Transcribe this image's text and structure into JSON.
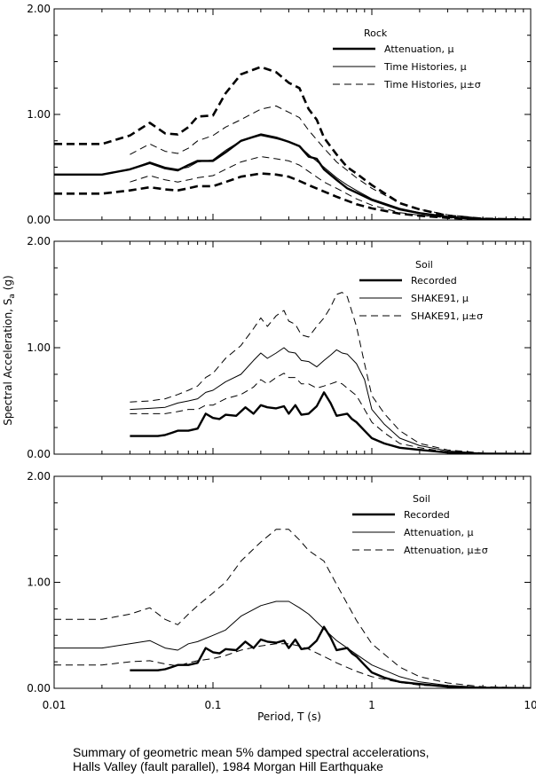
{
  "y_axis_label": "Spectral Acceleration, S",
  "y_axis_label_sub": "a",
  "y_axis_label_units": " (g)",
  "x_axis_label": "Period, T (s)",
  "caption": [
    "Summary of geometric mean 5% damped spectral accelerations,",
    "Halls Valley (fault parallel), 1984 Morgan Hill Earthquake"
  ],
  "chart_data": [
    {
      "type": "line",
      "xscale": "log",
      "xlim": [
        0.01,
        10
      ],
      "ylim": [
        0,
        2
      ],
      "yticks": [
        "0.00",
        "1.00",
        "2.00"
      ],
      "xticks": [],
      "grid": false,
      "legend_position": "top-right",
      "legend_title": "Rock",
      "series": [
        {
          "name": "Attenuation, μ",
          "style": "thick",
          "x": [
            0.01,
            0.02,
            0.03,
            0.04,
            0.05,
            0.06,
            0.07,
            0.08,
            0.1,
            0.12,
            0.15,
            0.2,
            0.25,
            0.3,
            0.35,
            0.4,
            0.45,
            0.5,
            0.6,
            0.7,
            0.8,
            1.0,
            1.5,
            2,
            3,
            4,
            5,
            7,
            10
          ],
          "y": [
            0.43,
            0.43,
            0.48,
            0.54,
            0.49,
            0.47,
            0.52,
            0.56,
            0.56,
            0.64,
            0.75,
            0.81,
            0.78,
            0.74,
            0.7,
            0.6,
            0.58,
            0.48,
            0.38,
            0.3,
            0.26,
            0.19,
            0.1,
            0.065,
            0.03,
            0.015,
            0.01,
            0.005,
            0.003
          ]
        },
        {
          "name": "Time Histories, μ",
          "style": "thin",
          "x": [
            0.03,
            0.04,
            0.05,
            0.06,
            0.07,
            0.08,
            0.1,
            0.12,
            0.15,
            0.2,
            0.25,
            0.3,
            0.35,
            0.4,
            0.5,
            0.6,
            0.7,
            0.8,
            1.0,
            1.5,
            2,
            3,
            4,
            5,
            7,
            10
          ],
          "y": [
            0.48,
            0.55,
            0.5,
            0.48,
            0.5,
            0.55,
            0.57,
            0.66,
            0.75,
            0.8,
            0.77,
            0.74,
            0.7,
            0.62,
            0.5,
            0.4,
            0.33,
            0.28,
            0.2,
            0.11,
            0.07,
            0.03,
            0.015,
            0.01,
            0.005,
            0.003
          ]
        },
        {
          "name": "Time Histories, μ±σ",
          "style": "dashed-thin",
          "x": [
            0.03,
            0.04,
            0.05,
            0.06,
            0.07,
            0.08,
            0.1,
            0.12,
            0.15,
            0.2,
            0.25,
            0.3,
            0.35,
            0.4,
            0.5,
            0.6,
            0.8,
            1.0,
            1.5,
            2,
            3,
            5,
            10
          ],
          "y": [
            0.62,
            0.72,
            0.65,
            0.63,
            0.68,
            0.75,
            0.8,
            0.88,
            0.95,
            1.05,
            1.08,
            1.02,
            0.97,
            0.85,
            0.68,
            0.55,
            0.4,
            0.3,
            0.16,
            0.1,
            0.05,
            0.015,
            0.004
          ]
        },
        {
          "name": "",
          "style": "dashed-thin",
          "x": [
            0.03,
            0.04,
            0.05,
            0.06,
            0.07,
            0.08,
            0.1,
            0.12,
            0.15,
            0.2,
            0.25,
            0.3,
            0.35,
            0.4,
            0.5,
            0.6,
            0.8,
            1.0,
            1.5,
            2,
            3,
            5,
            10
          ],
          "y": [
            0.36,
            0.42,
            0.38,
            0.36,
            0.38,
            0.4,
            0.42,
            0.48,
            0.55,
            0.6,
            0.58,
            0.56,
            0.52,
            0.46,
            0.36,
            0.3,
            0.2,
            0.14,
            0.07,
            0.045,
            0.02,
            0.008,
            0.002
          ]
        },
        {
          "name": "",
          "style": "dashed-thick",
          "x": [
            0.01,
            0.02,
            0.03,
            0.04,
            0.05,
            0.06,
            0.07,
            0.08,
            0.1,
            0.12,
            0.15,
            0.2,
            0.25,
            0.3,
            0.35,
            0.4,
            0.45,
            0.5,
            0.6,
            0.7,
            0.8,
            1.0,
            1.5,
            2,
            3,
            5,
            10
          ],
          "y": [
            0.72,
            0.72,
            0.8,
            0.92,
            0.82,
            0.81,
            0.88,
            0.98,
            0.99,
            1.2,
            1.38,
            1.45,
            1.4,
            1.3,
            1.25,
            1.05,
            0.95,
            0.78,
            0.62,
            0.5,
            0.44,
            0.33,
            0.16,
            0.1,
            0.04,
            0.012,
            0.003
          ]
        },
        {
          "name": "",
          "style": "dashed-thick",
          "x": [
            0.01,
            0.02,
            0.03,
            0.04,
            0.05,
            0.06,
            0.07,
            0.08,
            0.1,
            0.12,
            0.15,
            0.2,
            0.25,
            0.3,
            0.35,
            0.4,
            0.5,
            0.6,
            0.8,
            1.0,
            1.5,
            2,
            3,
            5,
            10
          ],
          "y": [
            0.25,
            0.25,
            0.28,
            0.31,
            0.29,
            0.28,
            0.3,
            0.32,
            0.32,
            0.36,
            0.41,
            0.44,
            0.43,
            0.41,
            0.37,
            0.33,
            0.27,
            0.22,
            0.15,
            0.11,
            0.06,
            0.04,
            0.02,
            0.006,
            0.002
          ]
        }
      ]
    },
    {
      "type": "line",
      "xscale": "log",
      "xlim": [
        0.01,
        10
      ],
      "ylim": [
        0,
        2
      ],
      "yticks": [
        "0.00",
        "1.00",
        "2.00"
      ],
      "xticks": [],
      "grid": false,
      "legend_position": "top-right",
      "legend_title": "Soil",
      "series": [
        {
          "name": "Recorded",
          "style": "thick",
          "x": [
            0.03,
            0.04,
            0.045,
            0.05,
            0.055,
            0.06,
            0.07,
            0.08,
            0.09,
            0.1,
            0.11,
            0.12,
            0.14,
            0.16,
            0.18,
            0.2,
            0.22,
            0.25,
            0.28,
            0.3,
            0.33,
            0.36,
            0.4,
            0.45,
            0.5,
            0.55,
            0.6,
            0.7,
            0.75,
            0.8,
            0.9,
            1.0,
            1.2,
            1.5,
            2,
            3,
            4,
            5,
            7,
            10
          ],
          "y": [
            0.17,
            0.17,
            0.17,
            0.18,
            0.2,
            0.22,
            0.22,
            0.24,
            0.38,
            0.34,
            0.33,
            0.37,
            0.36,
            0.44,
            0.38,
            0.46,
            0.44,
            0.43,
            0.45,
            0.38,
            0.46,
            0.37,
            0.38,
            0.45,
            0.58,
            0.48,
            0.36,
            0.38,
            0.33,
            0.3,
            0.22,
            0.15,
            0.1,
            0.06,
            0.04,
            0.015,
            0.008,
            0.005,
            0.003,
            0.002
          ]
        },
        {
          "name": "SHAKE91, μ",
          "style": "thin",
          "x": [
            0.03,
            0.04,
            0.05,
            0.06,
            0.07,
            0.08,
            0.09,
            0.1,
            0.12,
            0.15,
            0.18,
            0.2,
            0.22,
            0.25,
            0.28,
            0.3,
            0.33,
            0.36,
            0.4,
            0.45,
            0.5,
            0.55,
            0.6,
            0.65,
            0.7,
            0.8,
            0.9,
            1.0,
            1.2,
            1.5,
            2,
            3,
            5,
            10
          ],
          "y": [
            0.42,
            0.43,
            0.44,
            0.48,
            0.5,
            0.52,
            0.58,
            0.6,
            0.68,
            0.75,
            0.88,
            0.95,
            0.9,
            0.95,
            1.0,
            0.96,
            0.95,
            0.88,
            0.87,
            0.82,
            0.88,
            0.93,
            0.98,
            0.95,
            0.94,
            0.85,
            0.7,
            0.42,
            0.28,
            0.15,
            0.08,
            0.03,
            0.008,
            0.002
          ]
        },
        {
          "name": "SHAKE91, μ±σ",
          "style": "dashed-thin",
          "x": [
            0.03,
            0.04,
            0.05,
            0.06,
            0.07,
            0.08,
            0.09,
            0.1,
            0.12,
            0.15,
            0.18,
            0.2,
            0.22,
            0.25,
            0.28,
            0.3,
            0.33,
            0.36,
            0.4,
            0.45,
            0.5,
            0.55,
            0.6,
            0.65,
            0.7,
            0.8,
            0.9,
            1.0,
            1.2,
            1.5,
            2,
            3,
            5,
            10
          ],
          "y": [
            0.49,
            0.5,
            0.52,
            0.56,
            0.6,
            0.64,
            0.72,
            0.76,
            0.9,
            1.02,
            1.18,
            1.28,
            1.2,
            1.3,
            1.35,
            1.25,
            1.22,
            1.12,
            1.1,
            1.2,
            1.28,
            1.38,
            1.5,
            1.52,
            1.48,
            1.2,
            0.85,
            0.55,
            0.38,
            0.22,
            0.1,
            0.04,
            0.01,
            0.002
          ]
        },
        {
          "name": "",
          "style": "dashed-thin",
          "x": [
            0.03,
            0.04,
            0.05,
            0.06,
            0.07,
            0.08,
            0.09,
            0.1,
            0.12,
            0.15,
            0.18,
            0.2,
            0.22,
            0.25,
            0.28,
            0.3,
            0.33,
            0.36,
            0.4,
            0.45,
            0.5,
            0.55,
            0.6,
            0.65,
            0.7,
            0.8,
            0.9,
            1.0,
            1.2,
            1.5,
            2,
            3,
            5,
            10
          ],
          "y": [
            0.38,
            0.38,
            0.38,
            0.4,
            0.42,
            0.42,
            0.46,
            0.46,
            0.52,
            0.56,
            0.63,
            0.7,
            0.66,
            0.72,
            0.76,
            0.72,
            0.72,
            0.66,
            0.66,
            0.62,
            0.64,
            0.66,
            0.68,
            0.66,
            0.62,
            0.55,
            0.42,
            0.3,
            0.2,
            0.1,
            0.06,
            0.02,
            0.005,
            0.001
          ]
        }
      ]
    },
    {
      "type": "line",
      "xscale": "log",
      "xlim": [
        0.01,
        10
      ],
      "ylim": [
        0,
        2
      ],
      "yticks": [
        "0.00",
        "1.00",
        "2.00"
      ],
      "xticks": [
        "0.01",
        "0.1",
        "1",
        "10"
      ],
      "grid": false,
      "legend_position": "top-right",
      "legend_title": "Soil",
      "series": [
        {
          "name": "Recorded",
          "style": "thick",
          "x": [
            0.03,
            0.04,
            0.045,
            0.05,
            0.055,
            0.06,
            0.07,
            0.08,
            0.09,
            0.1,
            0.11,
            0.12,
            0.14,
            0.16,
            0.18,
            0.2,
            0.22,
            0.25,
            0.28,
            0.3,
            0.33,
            0.36,
            0.4,
            0.45,
            0.5,
            0.55,
            0.6,
            0.7,
            0.75,
            0.8,
            0.9,
            1.0,
            1.2,
            1.5,
            2,
            3,
            4,
            5,
            7,
            10
          ],
          "y": [
            0.17,
            0.17,
            0.17,
            0.18,
            0.2,
            0.22,
            0.22,
            0.24,
            0.38,
            0.34,
            0.33,
            0.37,
            0.36,
            0.44,
            0.38,
            0.46,
            0.44,
            0.43,
            0.45,
            0.38,
            0.46,
            0.37,
            0.38,
            0.45,
            0.58,
            0.48,
            0.36,
            0.38,
            0.33,
            0.3,
            0.22,
            0.15,
            0.1,
            0.06,
            0.04,
            0.015,
            0.008,
            0.005,
            0.003,
            0.002
          ]
        },
        {
          "name": "Attenuation, μ",
          "style": "thin",
          "x": [
            0.01,
            0.02,
            0.03,
            0.04,
            0.05,
            0.06,
            0.07,
            0.08,
            0.1,
            0.12,
            0.15,
            0.2,
            0.25,
            0.3,
            0.35,
            0.4,
            0.5,
            0.6,
            0.8,
            1.0,
            1.5,
            2,
            3,
            5,
            10
          ],
          "y": [
            0.38,
            0.38,
            0.42,
            0.45,
            0.38,
            0.36,
            0.42,
            0.44,
            0.5,
            0.55,
            0.68,
            0.78,
            0.82,
            0.82,
            0.76,
            0.7,
            0.56,
            0.45,
            0.32,
            0.22,
            0.11,
            0.06,
            0.028,
            0.008,
            0.002
          ]
        },
        {
          "name": "Attenuation, μ±σ",
          "style": "dashed-thin",
          "x": [
            0.01,
            0.02,
            0.03,
            0.04,
            0.05,
            0.06,
            0.07,
            0.08,
            0.1,
            0.12,
            0.15,
            0.2,
            0.25,
            0.3,
            0.35,
            0.4,
            0.5,
            0.6,
            0.8,
            1.0,
            1.5,
            2,
            3,
            5,
            10
          ],
          "y": [
            0.65,
            0.65,
            0.7,
            0.76,
            0.65,
            0.6,
            0.7,
            0.78,
            0.9,
            1.0,
            1.2,
            1.38,
            1.5,
            1.5,
            1.4,
            1.3,
            1.2,
            0.98,
            0.64,
            0.42,
            0.2,
            0.11,
            0.05,
            0.015,
            0.003
          ]
        },
        {
          "name": "",
          "style": "dashed-thin",
          "x": [
            0.01,
            0.02,
            0.03,
            0.04,
            0.05,
            0.06,
            0.07,
            0.08,
            0.1,
            0.12,
            0.15,
            0.2,
            0.25,
            0.3,
            0.35,
            0.4,
            0.5,
            0.6,
            0.8,
            1.0,
            1.5,
            2,
            3,
            5,
            10
          ],
          "y": [
            0.22,
            0.22,
            0.25,
            0.26,
            0.23,
            0.21,
            0.24,
            0.26,
            0.28,
            0.31,
            0.36,
            0.4,
            0.42,
            0.42,
            0.4,
            0.37,
            0.3,
            0.24,
            0.16,
            0.11,
            0.055,
            0.03,
            0.014,
            0.004,
            0.001
          ]
        }
      ]
    }
  ]
}
